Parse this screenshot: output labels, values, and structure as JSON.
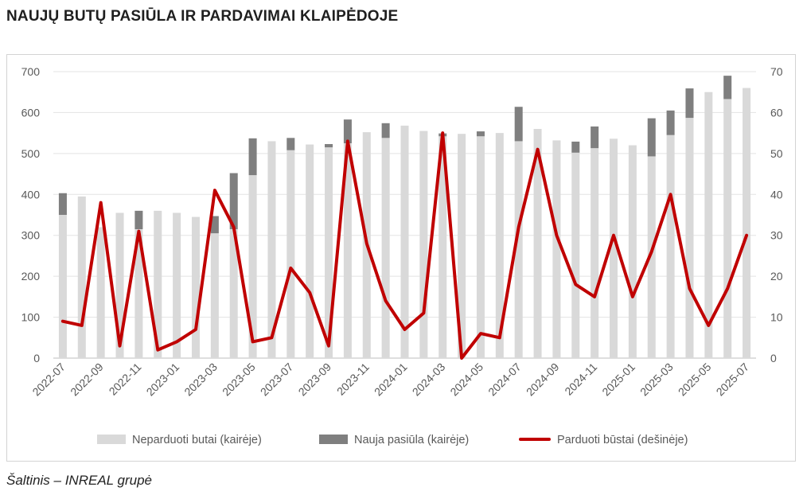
{
  "title": "NAUJŲ BUTŲ PASIŪLA IR PARDAVIMAI KLAIPĖDOJE",
  "source": "Šaltinis – INREAL grupė",
  "colors": {
    "unsold": "#d9d9d9",
    "new_supply": "#7f7f7f",
    "sold": "#c00000"
  },
  "chart_data": {
    "type": "bar",
    "stacked": true,
    "categories": [
      "2022-07",
      "2022-08",
      "2022-09",
      "2022-10",
      "2022-11",
      "2022-12",
      "2023-01",
      "2023-02",
      "2023-03",
      "2023-04",
      "2023-05",
      "2023-06",
      "2023-07",
      "2023-08",
      "2023-09",
      "2023-10",
      "2023-11",
      "2023-12",
      "2024-01",
      "2024-02",
      "2024-03",
      "2024-04",
      "2024-05",
      "2024-06",
      "2024-07",
      "2024-08",
      "2024-09",
      "2024-10",
      "2024-11",
      "2024-12",
      "2025-01",
      "2025-02",
      "2025-03",
      "2025-04",
      "2025-05",
      "2025-06",
      "2025-07"
    ],
    "tick_labels": [
      "2022-07",
      "2022-09",
      "2022-11",
      "2023-01",
      "2023-03",
      "2023-05",
      "2023-07",
      "2023-09",
      "2023-11",
      "2024-01",
      "2024-03",
      "2024-05",
      "2024-07",
      "2024-09",
      "2024-11",
      "2025-01",
      "2025-03",
      "2025-05",
      "2025-07"
    ],
    "y_left_ticks": [
      "0",
      "100",
      "200",
      "300",
      "400",
      "500",
      "600",
      "700"
    ],
    "y_right_ticks": [
      "0",
      "10",
      "20",
      "30",
      "40",
      "50",
      "60",
      "70"
    ],
    "ylim_left": [
      0,
      700
    ],
    "ylim_right": [
      0,
      70
    ],
    "grid": true,
    "legend_position": "bottom",
    "series": [
      {
        "name": "Neparduoti butai (kairėje)",
        "kind": "bar",
        "axis": "left",
        "values": [
          350,
          395,
          320,
          355,
          315,
          360,
          355,
          345,
          305,
          315,
          447,
          530,
          508,
          522,
          515,
          525,
          552,
          538,
          568,
          555,
          542,
          548,
          542,
          550,
          530,
          560,
          532,
          502,
          513,
          536,
          520,
          493,
          545,
          587,
          650,
          633,
          660
        ]
      },
      {
        "name": "Nauja pasiūla (kairėje)",
        "kind": "bar",
        "axis": "left",
        "values": [
          53,
          0,
          0,
          0,
          45,
          0,
          0,
          0,
          42,
          137,
          90,
          0,
          30,
          0,
          8,
          58,
          0,
          36,
          0,
          0,
          7,
          0,
          12,
          0,
          84,
          0,
          0,
          27,
          53,
          0,
          0,
          93,
          60,
          72,
          0,
          57,
          0
        ]
      },
      {
        "name": "Parduoti būstai (dešinėje)",
        "kind": "line",
        "axis": "right",
        "values": [
          9,
          8,
          38,
          3,
          31,
          2,
          4,
          7,
          41,
          32,
          4,
          5,
          22,
          16,
          3,
          53,
          28,
          14,
          7,
          11,
          55,
          0,
          6,
          5,
          32,
          51,
          30,
          18,
          15,
          30,
          15,
          26,
          40,
          17,
          8,
          17,
          30
        ]
      }
    ]
  }
}
